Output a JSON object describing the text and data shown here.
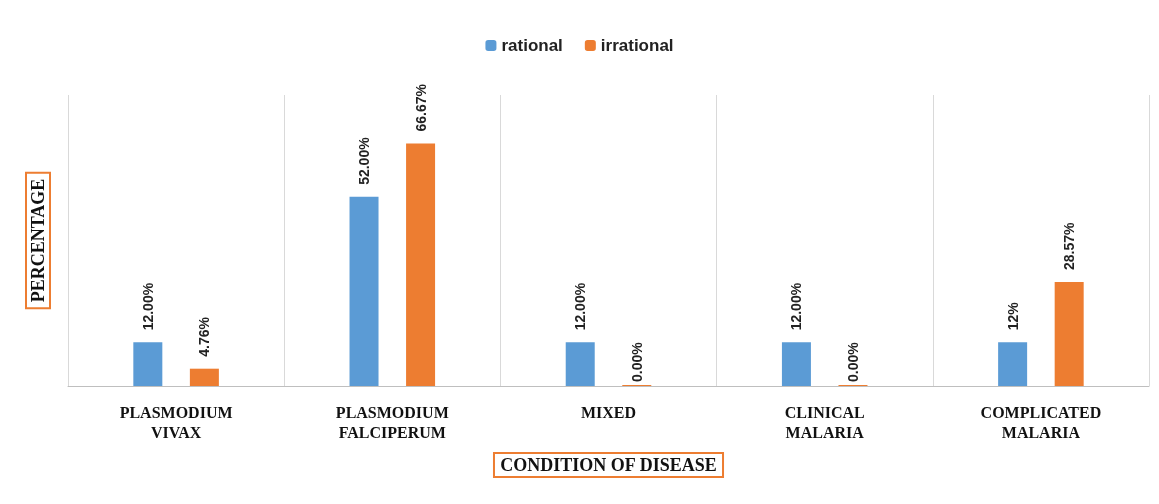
{
  "chart_data": {
    "type": "bar",
    "xlabel": "CONDITION OF DISEASE",
    "ylabel": "PERCENTAGE",
    "categories": [
      "PLASMODIUM VIVAX",
      "PLASMODIUM FALCIPERUM",
      "MIXED",
      "CLINICAL MALARIA",
      "COMPLICATED MALARIA"
    ],
    "series": [
      {
        "name": "rational",
        "color": "#5b9bd5",
        "values": [
          12,
          52,
          12,
          12,
          12
        ],
        "value_labels": [
          "12.00%",
          "52.00%",
          "12.00%",
          "12.00%",
          "12%"
        ]
      },
      {
        "name": "irrational",
        "color": "#ed7d31",
        "values": [
          4.76,
          66.67,
          0,
          0,
          28.57
        ],
        "value_labels": [
          "4.76%",
          "66.67%",
          "0.00%",
          "0.00%",
          "28.57%"
        ]
      }
    ],
    "grid": "x",
    "legend": "top"
  }
}
